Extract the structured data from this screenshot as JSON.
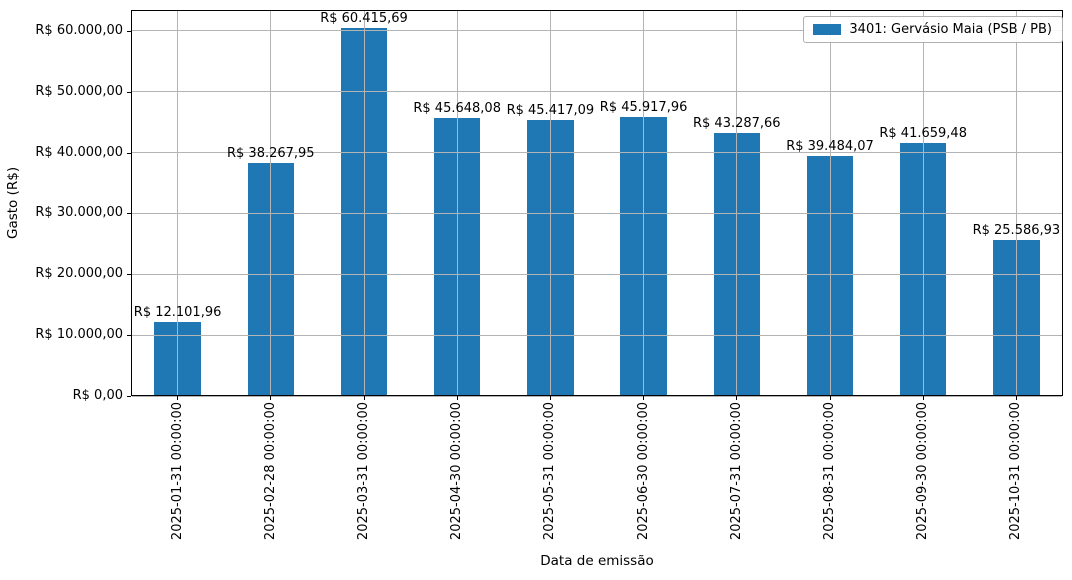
{
  "chart_data": {
    "type": "bar",
    "title": "",
    "xlabel": "Data de emissão",
    "ylabel": "Gasto (R$)",
    "categories": [
      "2025-01-31 00:00:00",
      "2025-02-28 00:00:00",
      "2025-03-31 00:00:00",
      "2025-04-30 00:00:00",
      "2025-05-31 00:00:00",
      "2025-06-30 00:00:00",
      "2025-07-31 00:00:00",
      "2025-08-31 00:00:00",
      "2025-09-30 00:00:00",
      "2025-10-31 00:00:00"
    ],
    "values": [
      12101.96,
      38267.95,
      60415.69,
      45648.08,
      45417.09,
      45917.96,
      43287.66,
      39484.07,
      41659.48,
      25586.93
    ],
    "value_labels": [
      "R$ 12.101,96",
      "R$ 38.267,95",
      "R$ 60.415,69",
      "R$ 45.648,08",
      "R$ 45.417,09",
      "R$ 45.917,96",
      "R$ 43.287,66",
      "R$ 39.484,07",
      "R$ 41.659,48",
      "R$ 25.586,93"
    ],
    "yticks": [
      0,
      10000,
      20000,
      30000,
      40000,
      50000,
      60000
    ],
    "ytick_labels": [
      "R$ 0,00",
      "R$ 10.000,00",
      "R$ 20.000,00",
      "R$ 30.000,00",
      "R$ 40.000,00",
      "R$ 50.000,00",
      "R$ 60.000,00"
    ],
    "ylim": [
      0,
      63450
    ],
    "grid": true,
    "bar_color": "#1f77b4",
    "grid_color": "#b4b4b4",
    "legend": {
      "position": "upper right",
      "entries": [
        {
          "label": "3401: Gervásio Maia (PSB / PB)",
          "color": "#1f77b4"
        }
      ]
    }
  }
}
